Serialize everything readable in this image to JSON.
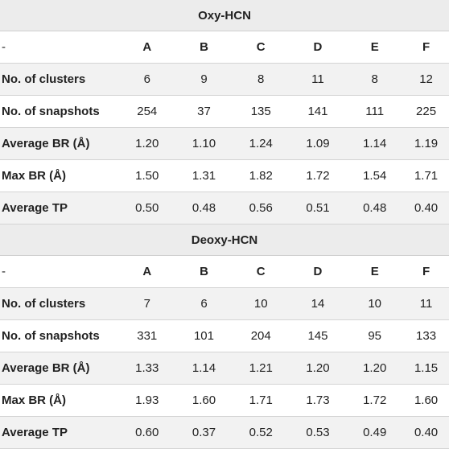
{
  "sections": [
    {
      "title": "Oxy-HCN",
      "header": {
        "label": "-",
        "cols": [
          "A",
          "B",
          "C",
          "D",
          "E",
          "F"
        ]
      },
      "rows": [
        {
          "label": "No. of clusters",
          "values": [
            "6",
            "9",
            "8",
            "11",
            "8",
            "12"
          ]
        },
        {
          "label": "No. of snapshots",
          "values": [
            "254",
            "37",
            "135",
            "141",
            "111",
            "225"
          ]
        },
        {
          "label": "Average BR (Å)",
          "values": [
            "1.20",
            "1.10",
            "1.24",
            "1.09",
            "1.14",
            "1.19"
          ]
        },
        {
          "label": "Max BR (Å)",
          "values": [
            "1.50",
            "1.31",
            "1.82",
            "1.72",
            "1.54",
            "1.71"
          ]
        },
        {
          "label": "Average TP",
          "values": [
            "0.50",
            "0.48",
            "0.56",
            "0.51",
            "0.48",
            "0.40"
          ]
        }
      ]
    },
    {
      "title": "Deoxy-HCN",
      "header": {
        "label": "-",
        "cols": [
          "A",
          "B",
          "C",
          "D",
          "E",
          "F"
        ]
      },
      "rows": [
        {
          "label": "No. of clusters",
          "values": [
            "7",
            "6",
            "10",
            "14",
            "10",
            "11"
          ]
        },
        {
          "label": "No. of snapshots",
          "values": [
            "331",
            "101",
            "204",
            "145",
            "95",
            "133"
          ]
        },
        {
          "label": "Average BR (Å)",
          "values": [
            "1.33",
            "1.14",
            "1.21",
            "1.20",
            "1.20",
            "1.15"
          ]
        },
        {
          "label": "Max BR (Å)",
          "values": [
            "1.93",
            "1.60",
            "1.71",
            "1.73",
            "1.72",
            "1.60"
          ]
        },
        {
          "label": "Average TP",
          "values": [
            "0.60",
            "0.37",
            "0.52",
            "0.53",
            "0.49",
            "0.40"
          ]
        }
      ]
    }
  ]
}
